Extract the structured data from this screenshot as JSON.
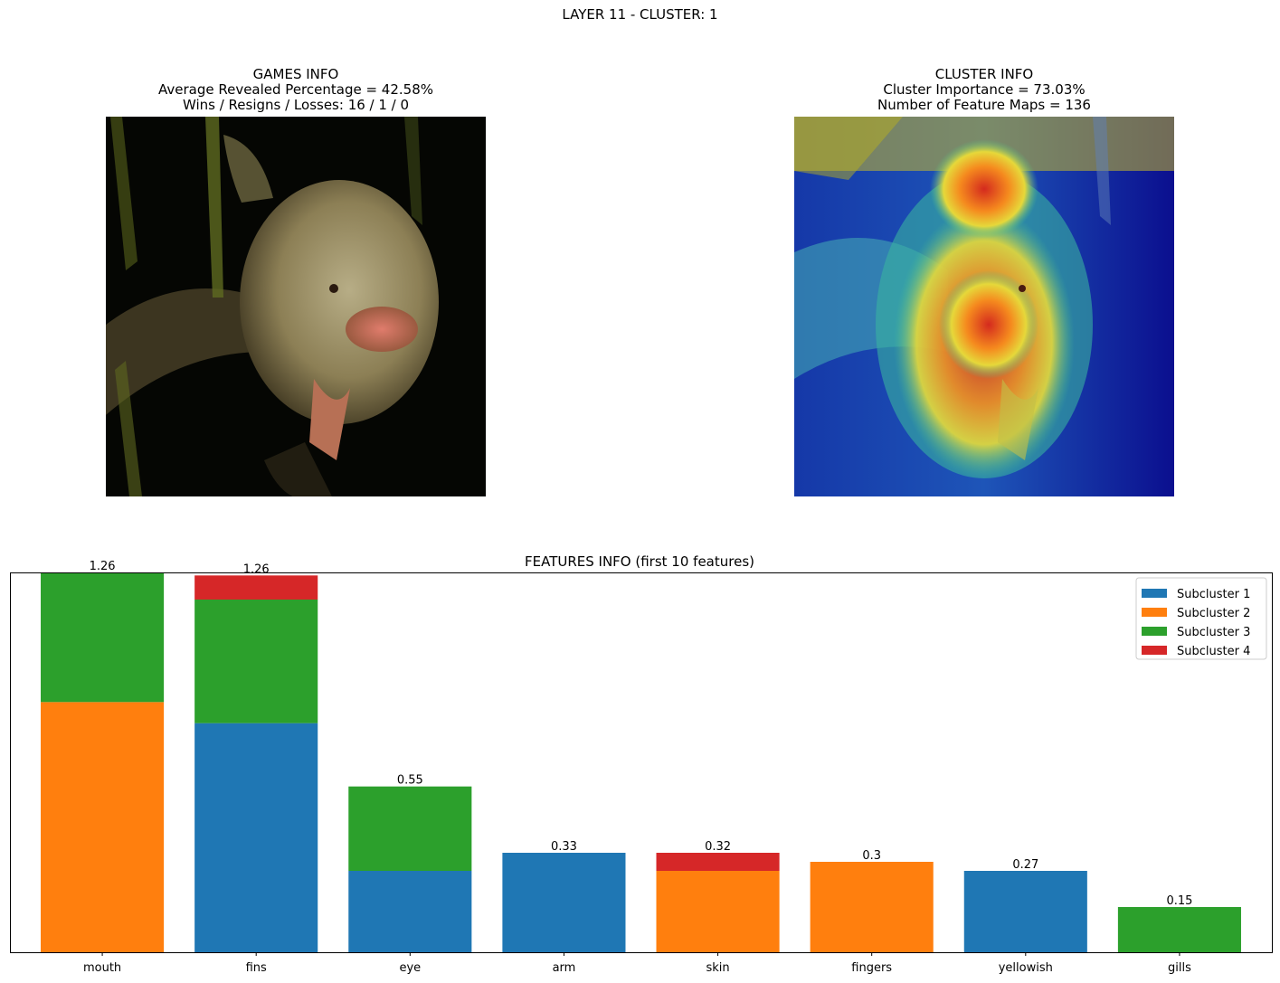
{
  "suptitle": "LAYER 11 - CLUSTER: 1",
  "games_info": {
    "title": "GAMES INFO",
    "line1": "Average Revealed Percentage = 42.58%",
    "line2": "Wins / Resigns / Losses: 16 / 1 / 0"
  },
  "cluster_info": {
    "title": "CLUSTER INFO",
    "line1": "Cluster Importance = 73.03%",
    "line2": "Number of Feature Maps = 136"
  },
  "chart_data": {
    "type": "bar",
    "stacked": true,
    "title": "FEATURES INFO (first 10 features)",
    "xlabel": "",
    "ylabel": "",
    "categories": [
      "mouth",
      "fins",
      "eye",
      "arm",
      "skin",
      "fingers",
      "yellowish",
      "gills"
    ],
    "totals_labels": [
      "1.26",
      "1.26",
      "0.55",
      "0.33",
      "0.32",
      "0.3",
      "0.27",
      "0.15"
    ],
    "series": [
      {
        "name": "Subcluster 1",
        "color": "#1f77b4",
        "values": [
          0,
          0.76,
          0.27,
          0.33,
          0,
          0,
          0.27,
          0
        ]
      },
      {
        "name": "Subcluster 2",
        "color": "#ff7f0e",
        "values": [
          0.83,
          0,
          0,
          0,
          0.27,
          0.3,
          0,
          0
        ]
      },
      {
        "name": "Subcluster 3",
        "color": "#2ca02c",
        "values": [
          0.43,
          0.41,
          0.28,
          0,
          0,
          0,
          0,
          0.15
        ]
      },
      {
        "name": "Subcluster 4",
        "color": "#d62728",
        "values": [
          0,
          0.08,
          0,
          0,
          0.06,
          0,
          0,
          0
        ]
      }
    ],
    "ylim": [
      0,
      1.26
    ],
    "legend_position": "upper right",
    "y_ticks_visible": false
  }
}
